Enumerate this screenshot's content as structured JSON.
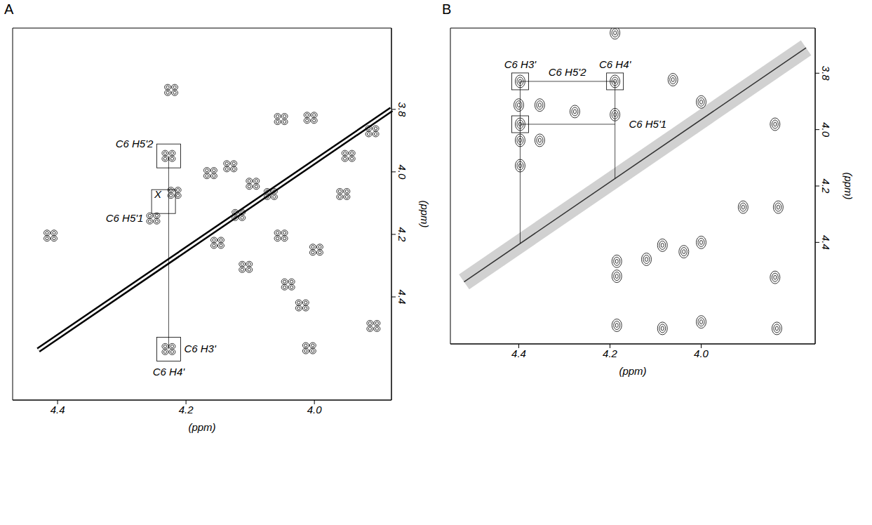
{
  "chart_data": [
    {
      "type": "scatter",
      "title": "A",
      "x_label": "(ppm)",
      "y_label": "(ppm)",
      "xlim": [
        4.47,
        3.88
      ],
      "ylim": [
        4.73,
        3.54
      ],
      "xticks": [
        4.4,
        4.2,
        {
          "value": 4,
          "label": "4.0"
        }
      ],
      "yticks": [
        3.8,
        {
          "value": 4,
          "label": "4.0"
        },
        4.2,
        4.4
      ],
      "peaks": {
        "x": [
          4.223,
          4.227,
          4.411,
          4.218,
          4.251,
          4.227,
          4.008,
          4.162,
          4.131,
          4.096,
          4.068,
          4.052,
          4.006,
          3.947,
          3.91,
          3.955,
          4.151,
          4.118,
          4.107,
          4.041,
          4.019,
          3.908,
          4.052,
          3.997
        ],
        "y": [
          3.738,
          3.949,
          4.204,
          4.067,
          4.149,
          4.567,
          4.564,
          4.004,
          3.982,
          4.038,
          4.071,
          3.831,
          3.827,
          3.949,
          3.87,
          4.071,
          4.227,
          4.138,
          4.304,
          4.36,
          4.427,
          4.493,
          4.204,
          4.249
        ]
      },
      "diagonal": {
        "x": [
          4.43,
          3.88
        ],
        "y": [
          4.57,
          3.8
        ]
      },
      "annotations": [
        {
          "text": "C6 H5'2",
          "x": 4.227,
          "y": 3.949
        },
        {
          "text": "X",
          "x": 4.235,
          "y": 4.095
        },
        {
          "text": "C6 H5'1",
          "x": 4.251,
          "y": 4.149
        },
        {
          "text": "C6 H3'",
          "x": 4.227,
          "y": 4.567
        },
        {
          "text": "C6 H4'",
          "x": 4.227,
          "y": 4.567
        }
      ]
    },
    {
      "type": "scatter",
      "title": "B",
      "x_label": "(ppm)",
      "y_label": "(ppm)",
      "xlim": [
        4.55,
        3.75
      ],
      "ylim": [
        4.76,
        3.64
      ],
      "xticks": [
        4.4,
        4.2,
        {
          "value": 4,
          "label": "4.0"
        }
      ],
      "yticks": [
        3.8,
        {
          "value": 4,
          "label": "4.0"
        },
        4.2,
        4.4
      ],
      "peaks": {
        "x": [
          4.189,
          4.189,
          4.397,
          4.397,
          4.189,
          4.4,
          4.354,
          4.354,
          4.397,
          4.397,
          4.277,
          4.062,
          4.0,
          3.838,
          3.908,
          3.831,
          3.838,
          3.834,
          4.038,
          4.085,
          4.0,
          4.185,
          4.185,
          4.085,
          4.0,
          4.185,
          4.12
        ],
        "y": [
          3.657,
          3.829,
          3.829,
          3.981,
          3.947,
          3.913,
          3.913,
          4.038,
          4.038,
          4.128,
          3.936,
          3.823,
          3.902,
          3.981,
          4.275,
          4.275,
          4.524,
          4.705,
          4.433,
          4.41,
          4.4,
          4.467,
          4.694,
          4.705,
          4.682,
          4.52,
          4.46
        ]
      },
      "diagonal": {
        "x": [
          4.52,
          3.77
        ],
        "y": [
          4.54,
          3.71
        ]
      },
      "annotations": [
        {
          "text": "C6 H3'",
          "x": 4.397,
          "y": 3.829
        },
        {
          "text": "C6 H4'",
          "x": 4.189,
          "y": 3.829
        },
        {
          "text": "C6 H5'2",
          "x": 4.189,
          "y": 3.829
        },
        {
          "text": "C6 H5'1",
          "x": 4.397,
          "y": 3.981
        }
      ]
    }
  ]
}
